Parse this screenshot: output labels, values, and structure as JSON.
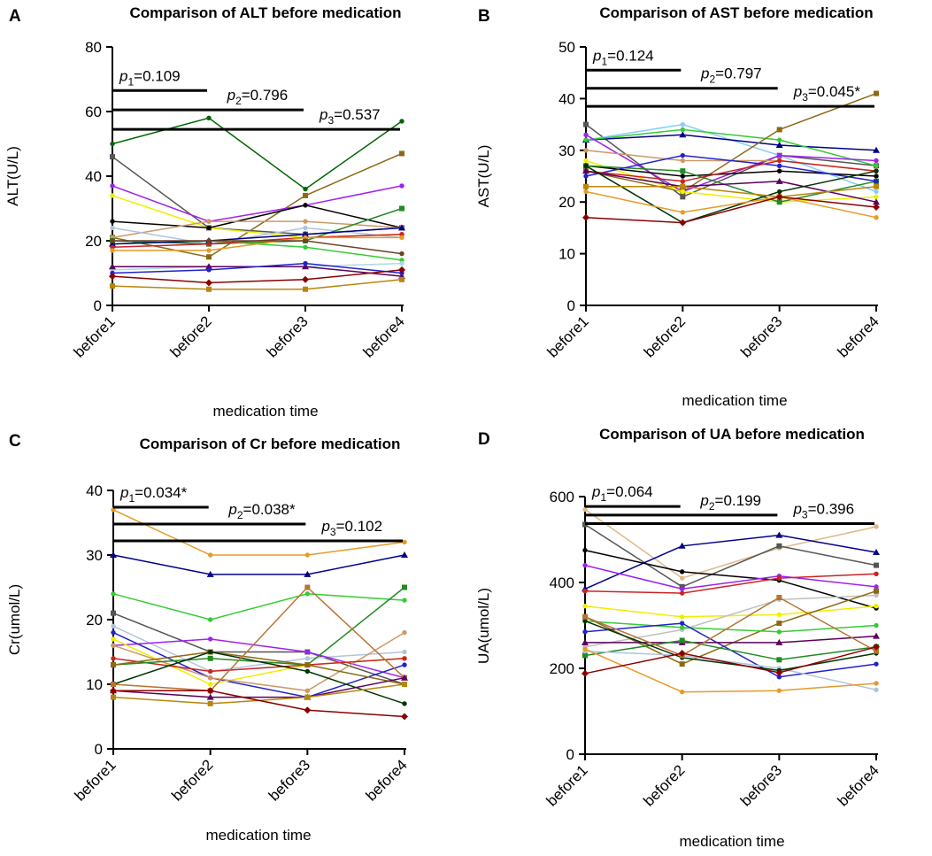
{
  "chart_data": [
    {
      "type": "line",
      "panel_label": "A",
      "title": "Comparison of ALT  before medication",
      "xlabel": "medication time",
      "ylabel": "ALT(U/L)",
      "ylim": [
        0,
        80
      ],
      "yticks": [
        "0",
        "20",
        "40",
        "60",
        "80"
      ],
      "categories": [
        "before1",
        "before2",
        "before3",
        "before4"
      ],
      "annotations": [
        {
          "prefix": "p",
          "sub": "1",
          "text": "=0.109",
          "from": 0,
          "to": 1,
          "level": 66.5
        },
        {
          "prefix": "p",
          "sub": "2",
          "text": "=0.796",
          "from": 0,
          "to": 2,
          "level": 60.5
        },
        {
          "prefix": "p",
          "sub": "3",
          "text": "=0.537",
          "from": 0,
          "to": 3,
          "level": 54.5
        }
      ],
      "series": [
        {
          "color": "#006400",
          "marker": "dot",
          "values": [
            50,
            58,
            36,
            57
          ]
        },
        {
          "color": "#555555",
          "marker": "square",
          "values": [
            46,
            24,
            22,
            24
          ]
        },
        {
          "color": "#8B6914",
          "marker": "square",
          "values": [
            21,
            15,
            34,
            47
          ]
        },
        {
          "color": "#A020F0",
          "marker": "dot",
          "values": [
            37,
            26,
            31,
            37
          ]
        },
        {
          "color": "#EEEE00",
          "marker": "dot",
          "values": [
            34,
            24,
            21,
            22
          ]
        },
        {
          "color": "#000000",
          "marker": "dot",
          "values": [
            26,
            24,
            31,
            24
          ]
        },
        {
          "color": "#CC9966",
          "marker": "dot",
          "values": [
            21,
            26,
            26,
            24
          ]
        },
        {
          "color": "#B0C4DE",
          "marker": "dot",
          "values": [
            24,
            19,
            24,
            21
          ]
        },
        {
          "color": "#228B22",
          "marker": "square",
          "values": [
            20,
            19,
            20,
            30
          ]
        },
        {
          "color": "#32CD32",
          "marker": "dot",
          "values": [
            19,
            20,
            18,
            14
          ]
        },
        {
          "color": "#00008B",
          "marker": "triangle",
          "values": [
            19,
            20,
            22,
            24
          ]
        },
        {
          "color": "#CC2222",
          "marker": "dot",
          "values": [
            18,
            19,
            21,
            22
          ]
        },
        {
          "color": "#E69A28",
          "marker": "dot",
          "values": [
            17,
            17,
            21,
            21
          ]
        },
        {
          "color": "#6B4226",
          "marker": "dot",
          "values": [
            20,
            20,
            20,
            16
          ]
        },
        {
          "color": "#ADD8E6",
          "marker": "dot",
          "values": [
            11,
            12,
            12,
            13
          ]
        },
        {
          "color": "#5B005B",
          "marker": "triangle",
          "values": [
            12,
            12,
            12,
            9
          ]
        },
        {
          "color": "#2222CC",
          "marker": "dot",
          "values": [
            10,
            11,
            13,
            10
          ]
        },
        {
          "color": "#8B0000",
          "marker": "diamond",
          "values": [
            9,
            7,
            8,
            11
          ]
        },
        {
          "color": "#B8860B",
          "marker": "square",
          "values": [
            6,
            5,
            5,
            8
          ]
        }
      ]
    },
    {
      "type": "line",
      "panel_label": "B",
      "title": "Comparison of AST  before medication",
      "xlabel": "medication time",
      "ylabel": "AST(U/L)",
      "ylim": [
        0,
        50
      ],
      "yticks": [
        "0",
        "10",
        "20",
        "30",
        "40",
        "50"
      ],
      "categories": [
        "before1",
        "before2",
        "before3",
        "before4"
      ],
      "annotations": [
        {
          "prefix": "p",
          "sub": "1",
          "text": "=0.124",
          "from": 0,
          "to": 1,
          "level": 45.5
        },
        {
          "prefix": "p",
          "sub": "2",
          "text": "=0.797",
          "from": 0,
          "to": 2,
          "level": 42
        },
        {
          "prefix": "p",
          "sub": "3",
          "text": "=0.045*",
          "from": 0,
          "to": 3,
          "level": 38.5
        }
      ],
      "series": [
        {
          "color": "#555555",
          "marker": "square",
          "values": [
            35,
            21,
            29,
            27
          ]
        },
        {
          "color": "#87CEFA",
          "marker": "dot",
          "values": [
            32,
            35,
            29,
            22
          ]
        },
        {
          "color": "#00008B",
          "marker": "triangle",
          "values": [
            32,
            33,
            31,
            30
          ]
        },
        {
          "color": "#32CD32",
          "marker": "dot",
          "values": [
            32,
            34,
            32,
            27
          ]
        },
        {
          "color": "#A020F0",
          "marker": "dot",
          "values": [
            33,
            22,
            29,
            28
          ]
        },
        {
          "color": "#8B6914",
          "marker": "square",
          "values": [
            26,
            22,
            34,
            41
          ]
        },
        {
          "color": "#CC9966",
          "marker": "dot",
          "values": [
            30,
            28,
            28,
            26
          ]
        },
        {
          "color": "#EEEE00",
          "marker": "dot",
          "values": [
            28,
            22,
            20,
            21
          ]
        },
        {
          "color": "#000000",
          "marker": "dot",
          "values": [
            27,
            25,
            26,
            25
          ]
        },
        {
          "color": "#228B22",
          "marker": "square",
          "values": [
            27,
            26,
            20,
            24
          ]
        },
        {
          "color": "#2222CC",
          "marker": "dot",
          "values": [
            25,
            29,
            27,
            24
          ]
        },
        {
          "color": "#CC2222",
          "marker": "dot",
          "values": [
            26,
            24,
            28,
            26
          ]
        },
        {
          "color": "#5B005B",
          "marker": "triangle",
          "values": [
            26,
            23,
            24,
            20
          ]
        },
        {
          "color": "#003300",
          "marker": "dot",
          "values": [
            27,
            16,
            22,
            26
          ]
        },
        {
          "color": "#B8860B",
          "marker": "square",
          "values": [
            23,
            23,
            21,
            23
          ]
        },
        {
          "color": "#E69A28",
          "marker": "dot",
          "values": [
            22,
            18,
            21,
            17
          ]
        },
        {
          "color": "#8B0000",
          "marker": "diamond",
          "values": [
            17,
            16,
            21,
            19
          ]
        }
      ]
    },
    {
      "type": "line",
      "panel_label": "C",
      "title": "Comparison of Cr before medication",
      "xlabel": "medication time",
      "ylabel": "Cr(umol/L)",
      "ylim": [
        0,
        40
      ],
      "yticks": [
        "0",
        "10",
        "20",
        "30",
        "40"
      ],
      "categories": [
        "before1",
        "before2",
        "before3",
        "before4"
      ],
      "annotations": [
        {
          "prefix": "p",
          "sub": "1",
          "text": "=0.034*",
          "from": 0,
          "to": 1,
          "level": 37.4
        },
        {
          "prefix": "p",
          "sub": "2",
          "text": "=0.038*",
          "from": 0,
          "to": 2,
          "level": 34.8
        },
        {
          "prefix": "p",
          "sub": "3",
          "text": "=0.102",
          "from": 0,
          "to": 3,
          "level": 32.2
        }
      ],
      "series": [
        {
          "color": "#E69A28",
          "marker": "dot",
          "values": [
            37,
            30,
            30,
            32
          ]
        },
        {
          "color": "#00008B",
          "marker": "triangle",
          "values": [
            30,
            27,
            27,
            30
          ]
        },
        {
          "color": "#32CD32",
          "marker": "dot",
          "values": [
            24,
            20,
            24,
            23
          ]
        },
        {
          "color": "#555555",
          "marker": "square",
          "values": [
            21,
            15,
            15,
            10
          ]
        },
        {
          "color": "#B0C4DE",
          "marker": "dot",
          "values": [
            19,
            12,
            14,
            15
          ]
        },
        {
          "color": "#A020F0",
          "marker": "dot",
          "values": [
            16,
            17,
            15,
            11
          ]
        },
        {
          "color": "#2222CC",
          "marker": "dot",
          "values": [
            18,
            11,
            8,
            13
          ]
        },
        {
          "color": "#EEEE00",
          "marker": "dot",
          "values": [
            17,
            10,
            13,
            14
          ]
        },
        {
          "color": "#CC9966",
          "marker": "dot",
          "values": [
            16,
            11,
            9,
            18
          ]
        },
        {
          "color": "#CC2222",
          "marker": "dot",
          "values": [
            14,
            12,
            13,
            14
          ]
        },
        {
          "color": "#228B22",
          "marker": "square",
          "values": [
            13,
            14,
            13,
            25
          ]
        },
        {
          "color": "#8B6914",
          "marker": "square",
          "values": [
            13,
            15,
            13,
            10
          ]
        },
        {
          "color": "#003300",
          "marker": "dot",
          "values": [
            10,
            15,
            12,
            7
          ]
        },
        {
          "color": "#B87333",
          "marker": "square",
          "values": [
            10,
            9,
            25,
            11
          ]
        },
        {
          "color": "#5B005B",
          "marker": "triangle",
          "values": [
            9,
            8,
            8,
            11
          ]
        },
        {
          "color": "#B8860B",
          "marker": "square",
          "values": [
            8,
            7,
            8,
            10
          ]
        },
        {
          "color": "#8B0000",
          "marker": "diamond",
          "values": [
            9,
            9,
            6,
            5
          ]
        }
      ]
    },
    {
      "type": "line",
      "panel_label": "D",
      "title": "Comparison of UA before medication",
      "xlabel": "medication time",
      "ylabel": "UA(umol/L)",
      "ylim": [
        0,
        600
      ],
      "yticks": [
        "0",
        "200",
        "400",
        "600"
      ],
      "categories": [
        "before1",
        "before2",
        "before3",
        "before4"
      ],
      "annotations": [
        {
          "prefix": "p",
          "sub": "1",
          "text": "=0.064",
          "from": 0,
          "to": 1,
          "level": 577
        },
        {
          "prefix": "p",
          "sub": "2",
          "text": "=0.199",
          "from": 0,
          "to": 2,
          "level": 557
        },
        {
          "prefix": "p",
          "sub": "3",
          "text": "=0.396",
          "from": 0,
          "to": 3,
          "level": 537
        }
      ],
      "series": [
        {
          "color": "#DEB887",
          "marker": "dot",
          "values": [
            570,
            410,
            480,
            530
          ]
        },
        {
          "color": "#555555",
          "marker": "square",
          "values": [
            535,
            390,
            485,
            440
          ]
        },
        {
          "color": "#00008B",
          "marker": "triangle",
          "values": [
            385,
            485,
            510,
            470
          ]
        },
        {
          "color": "#000000",
          "marker": "dot",
          "values": [
            475,
            425,
            405,
            340
          ]
        },
        {
          "color": "#A020F0",
          "marker": "dot",
          "values": [
            440,
            385,
            415,
            390
          ]
        },
        {
          "color": "#CC2222",
          "marker": "dot",
          "values": [
            380,
            375,
            410,
            420
          ]
        },
        {
          "color": "#EEEE00",
          "marker": "dot",
          "values": [
            345,
            320,
            325,
            345
          ]
        },
        {
          "color": "#C0C0C0",
          "marker": "dot",
          "values": [
            250,
            290,
            360,
            370
          ]
        },
        {
          "color": "#8B6914",
          "marker": "square",
          "values": [
            320,
            210,
            305,
            380
          ]
        },
        {
          "color": "#32CD32",
          "marker": "dot",
          "values": [
            310,
            295,
            285,
            300
          ]
        },
        {
          "color": "#2222CC",
          "marker": "dot",
          "values": [
            285,
            305,
            180,
            210
          ]
        },
        {
          "color": "#5B005B",
          "marker": "triangle",
          "values": [
            260,
            260,
            260,
            275
          ]
        },
        {
          "color": "#228B22",
          "marker": "square",
          "values": [
            230,
            265,
            220,
            250
          ]
        },
        {
          "color": "#B0C4DE",
          "marker": "dot",
          "values": [
            240,
            230,
            200,
            150
          ]
        },
        {
          "color": "#E69A28",
          "marker": "dot",
          "values": [
            245,
            145,
            148,
            165
          ]
        },
        {
          "color": "#003300",
          "marker": "dot",
          "values": [
            310,
            225,
            195,
            235
          ]
        },
        {
          "color": "#B87333",
          "marker": "square",
          "values": [
            320,
            230,
            365,
            240
          ]
        },
        {
          "color": "#8B0000",
          "marker": "diamond",
          "values": [
            188,
            235,
            190,
            250
          ]
        }
      ]
    }
  ]
}
